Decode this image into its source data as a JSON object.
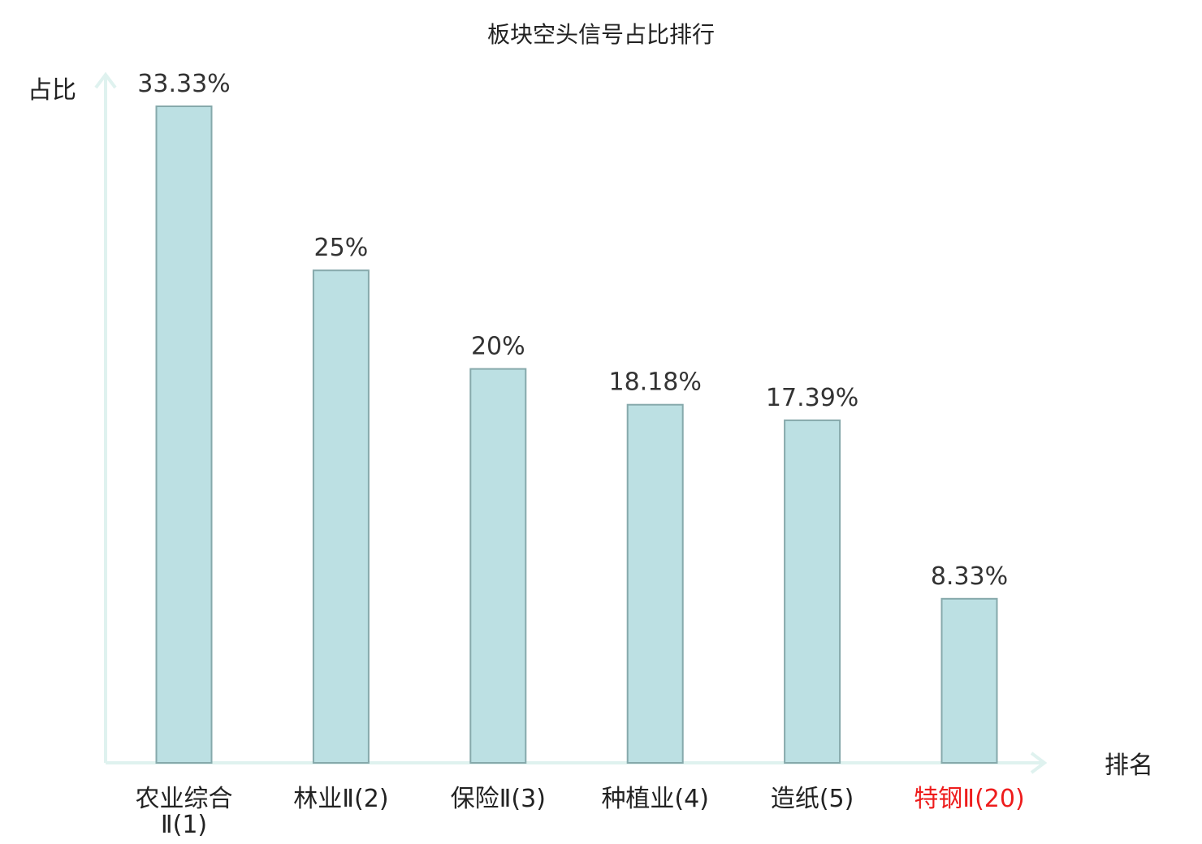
{
  "colors": {
    "bar_fill": "#bce0e3",
    "bar_stroke": "#86a9ab",
    "axis": "#dff2ef",
    "highlight": "#ee1c1c",
    "text": "#222222"
  },
  "chart_data": {
    "type": "bar",
    "title": "板块空头信号占比排行",
    "ylabel": "占比",
    "xlabel": "排名",
    "categories": [
      {
        "lines": [
          "农业综合",
          "Ⅱ(1)"
        ],
        "highlight": false
      },
      {
        "lines": [
          "林业Ⅱ(2)"
        ],
        "highlight": false
      },
      {
        "lines": [
          "保险Ⅱ(3)"
        ],
        "highlight": false
      },
      {
        "lines": [
          "种植业(4)"
        ],
        "highlight": false
      },
      {
        "lines": [
          "造纸(5)"
        ],
        "highlight": false
      },
      {
        "lines": [
          "特钢Ⅱ(20)"
        ],
        "highlight": true
      }
    ],
    "values": [
      33.33,
      25,
      20,
      18.18,
      17.39,
      8.33
    ],
    "value_labels": [
      "33.33%",
      "25%",
      "20%",
      "18.18%",
      "17.39%",
      "8.33%"
    ],
    "ylim": [
      0,
      33.33
    ],
    "grid": false,
    "legend": "none"
  }
}
